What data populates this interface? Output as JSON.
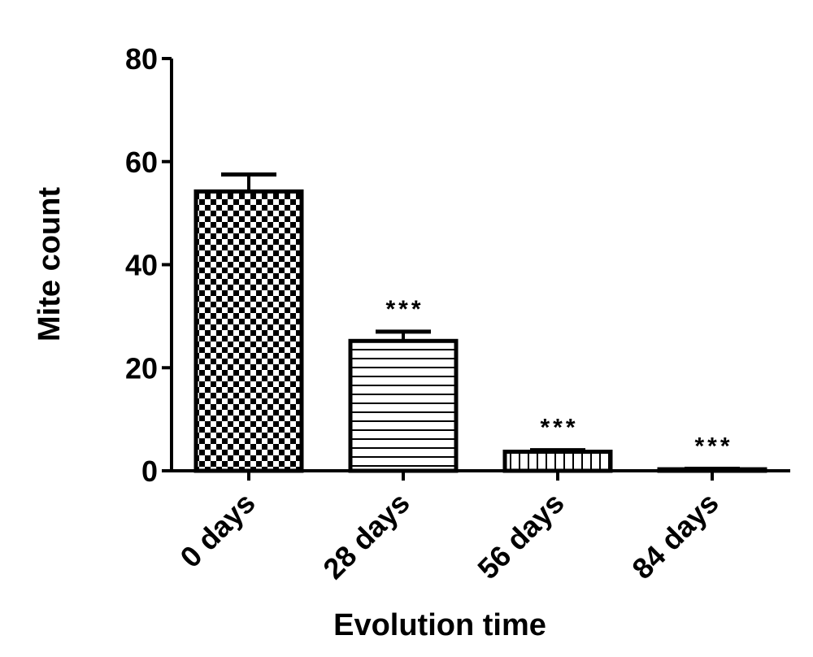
{
  "chart_data": {
    "type": "bar",
    "categories": [
      "0 days",
      "28 days",
      "56 days",
      "84 days"
    ],
    "values": [
      54.2,
      25.2,
      3.7,
      0.3
    ],
    "errors": [
      3.3,
      1.8,
      0.3,
      0.1
    ],
    "annotations": [
      "",
      "***",
      "***",
      "***"
    ],
    "patterns": [
      "checker",
      "horizontal-lines",
      "vertical-lines",
      "solid"
    ],
    "xlabel": "Evolution time",
    "ylabel": "Mite count",
    "ylim": [
      0,
      80
    ],
    "yticks": [
      0,
      20,
      40,
      60,
      80
    ],
    "ytick_labels": [
      "0",
      "20",
      "40",
      "60",
      "80"
    ],
    "grid": false,
    "bar_color": "#000000",
    "background": "#ffffff"
  }
}
